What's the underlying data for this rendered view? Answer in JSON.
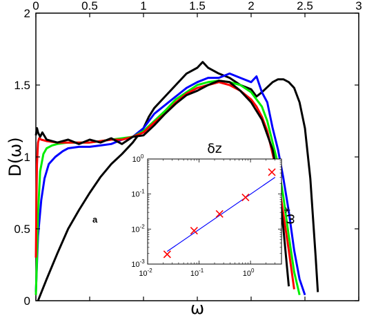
{
  "chart_data": [
    {
      "type": "line",
      "xlabel": "ω",
      "ylabel": "D(ω)",
      "xlim": [
        0,
        3
      ],
      "ylim": [
        0,
        2
      ],
      "x_ticks": [
        "0",
        "0.5",
        "1",
        "1.5",
        "2",
        "2.5",
        "3"
      ],
      "y_ticks": [
        "0",
        "0.5",
        "1",
        "1.5",
        "2"
      ],
      "grid": false,
      "legend": "none",
      "annotation": "a",
      "series": [
        {
          "color": "#000000",
          "x": [
            0.02,
            0.1,
            0.2,
            0.3,
            0.4,
            0.5,
            0.6,
            0.7,
            0.8,
            0.9,
            1.0,
            1.05,
            1.1,
            1.2,
            1.3,
            1.4,
            1.5,
            1.55,
            1.6,
            1.7,
            1.8,
            1.9,
            2.0,
            2.05,
            2.1,
            2.2,
            2.25,
            2.3,
            2.35,
            2.4,
            2.45,
            2.5,
            2.55,
            2.6,
            2.62
          ],
          "y": [
            0.0,
            0.15,
            0.33,
            0.5,
            0.63,
            0.75,
            0.86,
            0.95,
            1.02,
            1.1,
            1.2,
            1.28,
            1.34,
            1.42,
            1.5,
            1.58,
            1.62,
            1.66,
            1.62,
            1.58,
            1.55,
            1.5,
            1.47,
            1.42,
            1.45,
            1.52,
            1.54,
            1.54,
            1.52,
            1.48,
            1.38,
            1.2,
            0.85,
            0.3,
            0.06
          ]
        },
        {
          "color": "#0000ff",
          "x": [
            0.0,
            0.02,
            0.05,
            0.08,
            0.12,
            0.18,
            0.25,
            0.3,
            0.4,
            0.5,
            0.6,
            0.7,
            0.8,
            0.9,
            1.0,
            1.05,
            1.1,
            1.2,
            1.3,
            1.4,
            1.5,
            1.6,
            1.7,
            1.8,
            1.9,
            2.0,
            2.05,
            2.1,
            2.15,
            2.2,
            2.25,
            2.3,
            2.35,
            2.4,
            2.45,
            2.5
          ],
          "y": [
            0.06,
            0.45,
            0.7,
            0.85,
            0.95,
            1.0,
            1.04,
            1.06,
            1.07,
            1.07,
            1.08,
            1.09,
            1.12,
            1.14,
            1.2,
            1.25,
            1.3,
            1.36,
            1.42,
            1.48,
            1.52,
            1.55,
            1.55,
            1.58,
            1.55,
            1.52,
            1.56,
            1.45,
            1.38,
            1.2,
            1.05,
            0.85,
            0.62,
            0.35,
            0.15,
            0.04
          ]
        },
        {
          "color": "#00ee00",
          "x": [
            0.0,
            0.01,
            0.02,
            0.04,
            0.07,
            0.1,
            0.15,
            0.2,
            0.3,
            0.4,
            0.5,
            0.6,
            0.7,
            0.8,
            0.9,
            1.0,
            1.1,
            1.2,
            1.3,
            1.4,
            1.5,
            1.6,
            1.7,
            1.8,
            1.9,
            2.0,
            2.05,
            2.1,
            2.15,
            2.2,
            2.25,
            2.3,
            2.35,
            2.4,
            2.45
          ],
          "y": [
            0.04,
            0.3,
            0.6,
            0.9,
            1.02,
            1.06,
            1.08,
            1.09,
            1.1,
            1.1,
            1.1,
            1.11,
            1.12,
            1.13,
            1.14,
            1.18,
            1.25,
            1.32,
            1.4,
            1.45,
            1.5,
            1.52,
            1.53,
            1.52,
            1.5,
            1.45,
            1.4,
            1.35,
            1.25,
            1.1,
            0.95,
            0.72,
            0.45,
            0.2,
            0.04
          ]
        },
        {
          "color": "#ff0000",
          "x": [
            0.0,
            0.005,
            0.01,
            0.02,
            0.03,
            0.05,
            0.1,
            0.2,
            0.3,
            0.4,
            0.5,
            0.6,
            0.7,
            0.8,
            0.9,
            1.0,
            1.1,
            1.2,
            1.3,
            1.4,
            1.5,
            1.6,
            1.7,
            1.8,
            1.9,
            2.0,
            2.05,
            2.1,
            2.15,
            2.2,
            2.25,
            2.3,
            2.35,
            2.4
          ],
          "y": [
            0.3,
            0.7,
            0.95,
            1.1,
            1.13,
            1.12,
            1.11,
            1.1,
            1.1,
            1.1,
            1.1,
            1.11,
            1.12,
            1.12,
            1.14,
            1.17,
            1.24,
            1.3,
            1.38,
            1.44,
            1.48,
            1.5,
            1.52,
            1.5,
            1.46,
            1.4,
            1.35,
            1.28,
            1.18,
            1.02,
            0.85,
            0.6,
            0.35,
            0.08
          ]
        },
        {
          "color": "#000000",
          "x": [
            0.0,
            0.01,
            0.02,
            0.04,
            0.06,
            0.1,
            0.2,
            0.3,
            0.4,
            0.5,
            0.6,
            0.7,
            0.8,
            0.9,
            1.0,
            1.1,
            1.2,
            1.3,
            1.4,
            1.5,
            1.6,
            1.7,
            1.8,
            1.9,
            2.0,
            2.1,
            2.2,
            2.25,
            2.3,
            2.35
          ],
          "y": [
            1.15,
            1.2,
            1.17,
            1.14,
            1.17,
            1.12,
            1.1,
            1.12,
            1.09,
            1.12,
            1.1,
            1.13,
            1.09,
            1.14,
            1.15,
            1.22,
            1.3,
            1.37,
            1.43,
            1.46,
            1.5,
            1.53,
            1.52,
            1.46,
            1.38,
            1.26,
            1.05,
            0.85,
            0.5,
            0.1
          ]
        }
      ]
    },
    {
      "type": "line",
      "xlabel": "δz",
      "ylabel": "ω*",
      "xscale": "log",
      "yscale": "log",
      "xlim": [
        0.01,
        4
      ],
      "ylim": [
        0.001,
        1
      ],
      "x_ticks": [
        "10",
        "10",
        "10"
      ],
      "x_tick_exponents": [
        "-2",
        "-1",
        "0"
      ],
      "y_ticks": [
        "10",
        "10",
        "10",
        "10"
      ],
      "y_tick_exponents": [
        "-3",
        "-2",
        "-1",
        "0"
      ],
      "fit_line": {
        "color": "#0000ff",
        "x": [
          0.024,
          3.0
        ],
        "y": [
          0.0023,
          0.3
        ]
      },
      "markers": {
        "color": "#ff0000",
        "marker": "x",
        "x": [
          0.024,
          0.08,
          0.25,
          0.8,
          2.6
        ],
        "y": [
          0.0019,
          0.009,
          0.027,
          0.08,
          0.42
        ]
      }
    }
  ]
}
